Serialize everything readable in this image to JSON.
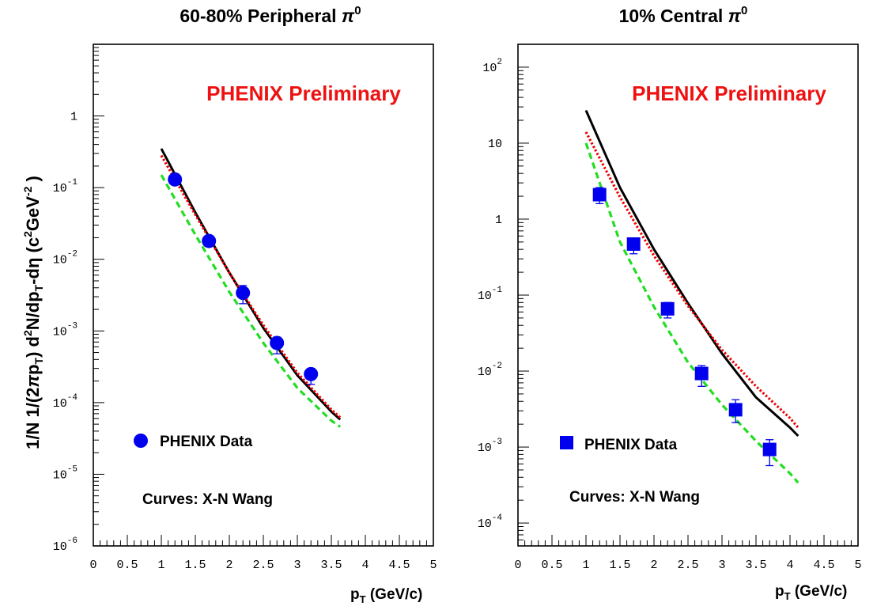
{
  "colors": {
    "data": "#0000ee",
    "black_curve": "#000000",
    "red_curve": "#ee0000",
    "green_curve": "#22dd22",
    "preliminary": "#ee1111"
  },
  "y_axis_title_parts": [
    "1/N 1/(2",
    "π",
    "p",
    "T",
    ") d",
    "2",
    "N/dp",
    "T",
    "-d",
    "η",
    "  (c",
    "2",
    "GeV",
    "-2",
    " )"
  ],
  "chart_data": [
    {
      "type": "scatter",
      "title_main": "60-80%  Peripheral ",
      "title_sym": "π",
      "title_sup": "0",
      "xlabel_main": "p",
      "xlabel_sub": "T",
      "xlabel_unit": "  (GeV/c)",
      "xlim": [
        0,
        5
      ],
      "ylim": [
        1e-06,
        10
      ],
      "y_scale": "log",
      "x_ticks": [
        "0",
        "0.5",
        "1",
        "1.5",
        "2",
        "2.5",
        "3",
        "3.5",
        "4",
        "4.5",
        "5"
      ],
      "y_ticks": [
        {
          "value": 1e-06,
          "base": "10",
          "exp": "-6"
        },
        {
          "value": 1e-05,
          "base": "10",
          "exp": "-5"
        },
        {
          "value": 0.0001,
          "base": "10",
          "exp": "-4"
        },
        {
          "value": 0.001,
          "base": "10",
          "exp": "-3"
        },
        {
          "value": 0.01,
          "base": "10",
          "exp": "-2"
        },
        {
          "value": 0.1,
          "base": "10",
          "exp": "-1"
        },
        {
          "value": 1,
          "base": "1",
          "exp": ""
        }
      ],
      "annotation": "PHENIX Preliminary",
      "marker": "circle",
      "legend_label": "PHENIX Data",
      "credit": "Curves: X-N Wang",
      "data_points": [
        {
          "x": 1.2,
          "y": 0.13,
          "ylow": 0.11,
          "yhigh": 0.15
        },
        {
          "x": 1.7,
          "y": 0.018,
          "ylow": 0.0155,
          "yhigh": 0.021
        },
        {
          "x": 2.2,
          "y": 0.0034,
          "ylow": 0.0024,
          "yhigh": 0.0043
        },
        {
          "x": 2.7,
          "y": 0.00068,
          "ylow": 0.00048,
          "yhigh": 0.00082
        },
        {
          "x": 3.2,
          "y": 0.00025,
          "ylow": 0.00018,
          "yhigh": 0.0003
        }
      ],
      "series": [
        {
          "style": "solid",
          "color": "#000000",
          "x": [
            1.0,
            1.5,
            2.0,
            2.5,
            3.0,
            3.5,
            3.63
          ],
          "y": [
            0.35,
            0.045,
            0.0065,
            0.0011,
            0.00024,
            7.5e-05,
            5.8e-05
          ]
        },
        {
          "style": "dotted",
          "color": "#ee0000",
          "x": [
            1.0,
            1.5,
            2.0,
            2.5,
            3.0,
            3.5,
            3.63
          ],
          "y": [
            0.28,
            0.042,
            0.0065,
            0.0012,
            0.00026,
            8e-05,
            6.2e-05
          ]
        },
        {
          "style": "dashed",
          "color": "#22dd22",
          "x": [
            1.0,
            1.5,
            2.0,
            2.5,
            3.0,
            3.5,
            3.63
          ],
          "y": [
            0.15,
            0.022,
            0.0035,
            0.00068,
            0.00016,
            5.6e-05,
            4.6e-05
          ]
        }
      ]
    },
    {
      "type": "scatter",
      "title_main": "10%  Central ",
      "title_sym": "π",
      "title_sup": "0",
      "xlabel_main": "p",
      "xlabel_sub": "T",
      "xlabel_unit": "  (GeV/c)",
      "xlim": [
        0,
        5
      ],
      "ylim": [
        5e-05,
        200
      ],
      "y_scale": "log",
      "x_ticks": [
        "0",
        "0.5",
        "1",
        "1.5",
        "2",
        "2.5",
        "3",
        "3.5",
        "4",
        "4.5",
        "5"
      ],
      "y_ticks": [
        {
          "value": 0.0001,
          "base": "10",
          "exp": "-4"
        },
        {
          "value": 0.001,
          "base": "10",
          "exp": "-3"
        },
        {
          "value": 0.01,
          "base": "10",
          "exp": "-2"
        },
        {
          "value": 0.1,
          "base": "10",
          "exp": "-1"
        },
        {
          "value": 1,
          "base": "1",
          "exp": ""
        },
        {
          "value": 10,
          "base": "10",
          "exp": ""
        },
        {
          "value": 100,
          "base": "10",
          "exp": "2"
        }
      ],
      "annotation": "PHENIX Preliminary",
      "marker": "square",
      "legend_label": "PHENIX Data",
      "credit": "Curves: X-N Wang",
      "data_points": [
        {
          "x": 1.2,
          "y": 2.1,
          "ylow": 1.6,
          "yhigh": 2.6
        },
        {
          "x": 1.7,
          "y": 0.47,
          "ylow": 0.35,
          "yhigh": 0.56
        },
        {
          "x": 2.2,
          "y": 0.066,
          "ylow": 0.05,
          "yhigh": 0.08
        },
        {
          "x": 2.7,
          "y": 0.0093,
          "ylow": 0.0063,
          "yhigh": 0.0118
        },
        {
          "x": 3.2,
          "y": 0.0031,
          "ylow": 0.0021,
          "yhigh": 0.0042
        },
        {
          "x": 3.7,
          "y": 0.00093,
          "ylow": 0.00057,
          "yhigh": 0.00125
        }
      ],
      "series": [
        {
          "style": "solid",
          "color": "#000000",
          "x": [
            1.0,
            1.5,
            2.0,
            2.5,
            3.0,
            3.5,
            4.0,
            4.12
          ],
          "y": [
            27,
            2.6,
            0.4,
            0.078,
            0.017,
            0.0045,
            0.0018,
            0.0014
          ]
        },
        {
          "style": "dotted",
          "color": "#ee0000",
          "x": [
            1.0,
            1.5,
            2.0,
            2.5,
            3.0,
            3.5,
            4.0,
            4.12
          ],
          "y": [
            14,
            1.95,
            0.33,
            0.072,
            0.019,
            0.0063,
            0.0024,
            0.0018
          ]
        },
        {
          "style": "dashed",
          "color": "#22dd22",
          "x": [
            1.0,
            1.5,
            2.0,
            2.5,
            3.0,
            3.5,
            4.0,
            4.12
          ],
          "y": [
            10,
            0.5,
            0.07,
            0.013,
            0.0036,
            0.0012,
            0.00045,
            0.00034
          ]
        }
      ]
    }
  ]
}
